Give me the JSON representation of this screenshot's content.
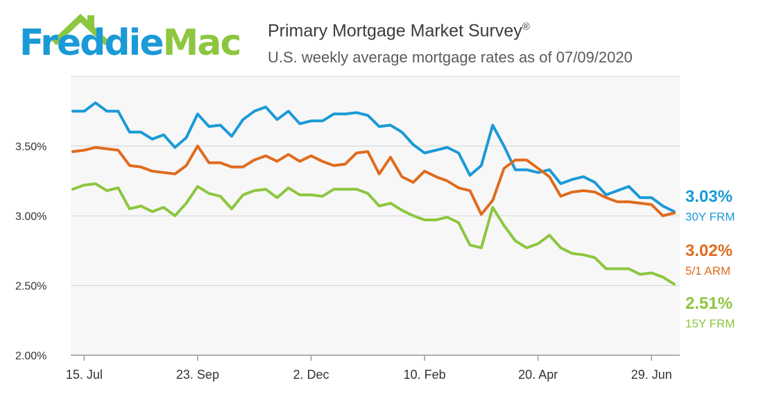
{
  "header": {
    "logo": {
      "part1": "Freddie",
      "part2": "Mac"
    },
    "title": "Primary Mortgage Market Survey",
    "title_mark": "®",
    "subtitle": "U.S. weekly average mortgage rates as of 07/09/2020"
  },
  "chart_data": {
    "type": "line",
    "ylim": [
      2.0,
      4.0
    ],
    "y_ticks": [
      {
        "value": 2.0,
        "label": "2.00%"
      },
      {
        "value": 2.5,
        "label": "2.50%"
      },
      {
        "value": 3.0,
        "label": "3.00%"
      },
      {
        "value": 3.5,
        "label": "3.50%"
      }
    ],
    "x_ticks": [
      {
        "index": 1,
        "label": "15. Jul"
      },
      {
        "index": 11,
        "label": "23. Sep"
      },
      {
        "index": 21,
        "label": "2. Dec"
      },
      {
        "index": 31,
        "label": "10. Feb"
      },
      {
        "index": 41,
        "label": "20. Apr"
      },
      {
        "index": 51,
        "label": "29. Jun"
      }
    ],
    "grid": true,
    "series": [
      {
        "name": "30Y FRM",
        "color": "#1a9ad6",
        "end_label": "3.03%",
        "values": [
          3.75,
          3.75,
          3.81,
          3.75,
          3.75,
          3.6,
          3.6,
          3.55,
          3.58,
          3.49,
          3.56,
          3.73,
          3.64,
          3.65,
          3.57,
          3.69,
          3.75,
          3.78,
          3.69,
          3.75,
          3.66,
          3.68,
          3.68,
          3.73,
          3.73,
          3.74,
          3.72,
          3.64,
          3.65,
          3.6,
          3.51,
          3.45,
          3.47,
          3.49,
          3.45,
          3.29,
          3.36,
          3.65,
          3.5,
          3.33,
          3.33,
          3.31,
          3.33,
          3.23,
          3.26,
          3.28,
          3.24,
          3.15,
          3.18,
          3.21,
          3.13,
          3.13,
          3.07,
          3.03
        ]
      },
      {
        "name": "5/1 ARM",
        "color": "#e06b1f",
        "end_label": "3.02%",
        "values": [
          3.46,
          3.47,
          3.49,
          3.48,
          3.47,
          3.36,
          3.35,
          3.32,
          3.31,
          3.3,
          3.36,
          3.5,
          3.38,
          3.38,
          3.35,
          3.35,
          3.4,
          3.43,
          3.39,
          3.44,
          3.39,
          3.43,
          3.39,
          3.36,
          3.37,
          3.45,
          3.46,
          3.3,
          3.42,
          3.28,
          3.24,
          3.32,
          3.28,
          3.25,
          3.2,
          3.18,
          3.01,
          3.11,
          3.34,
          3.4,
          3.4,
          3.34,
          3.28,
          3.14,
          3.17,
          3.18,
          3.17,
          3.13,
          3.1,
          3.1,
          3.09,
          3.08,
          3.0,
          3.02
        ]
      },
      {
        "name": "15Y FRM",
        "color": "#8dc63f",
        "end_label": "2.51%",
        "values": [
          3.19,
          3.22,
          3.23,
          3.18,
          3.2,
          3.05,
          3.07,
          3.03,
          3.06,
          3.0,
          3.09,
          3.21,
          3.16,
          3.14,
          3.05,
          3.15,
          3.18,
          3.19,
          3.13,
          3.2,
          3.15,
          3.15,
          3.14,
          3.19,
          3.19,
          3.19,
          3.16,
          3.07,
          3.09,
          3.04,
          3.0,
          2.97,
          2.97,
          2.99,
          2.95,
          2.79,
          2.77,
          3.06,
          2.93,
          2.82,
          2.77,
          2.8,
          2.86,
          2.77,
          2.73,
          2.72,
          2.7,
          2.62,
          2.62,
          2.62,
          2.58,
          2.59,
          2.56,
          2.51
        ]
      }
    ]
  }
}
